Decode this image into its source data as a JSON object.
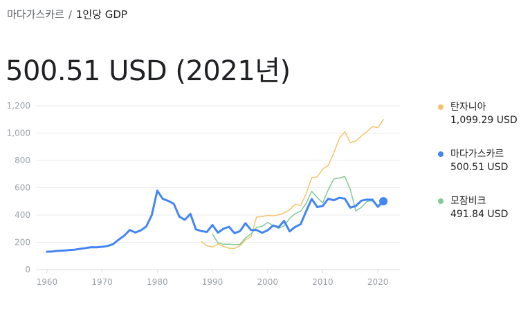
{
  "breadcrumb": {
    "parent": "마다가스카르",
    "separator": "/",
    "current": "1인당 GDP"
  },
  "headline": "500.51 USD (2021년)",
  "legend": [
    {
      "name": "탄자니아",
      "value": "1,099.29 USD",
      "color": "#f6c26b"
    },
    {
      "name": "마다가스카르",
      "value": "500.51 USD",
      "color": "#4285f4"
    },
    {
      "name": "모잠비크",
      "value": "491.84 USD",
      "color": "#81c995"
    }
  ],
  "chart_data": {
    "type": "line",
    "title": "1인당 GDP",
    "xlim": [
      1958,
      2024
    ],
    "ylim": [
      0,
      1200
    ],
    "grid": true,
    "legend_position": "right",
    "x_ticks": [
      1960,
      1970,
      1980,
      1990,
      2000,
      2010,
      2020
    ],
    "y_ticks": [
      0,
      200,
      400,
      600,
      800,
      1000,
      1200
    ],
    "y_tick_labels": [
      "0",
      "200",
      "400",
      "600",
      "800",
      "1,000",
      "1,200"
    ],
    "series": [
      {
        "name": "마다가스카르",
        "color": "#4285f4",
        "x": [
          1960,
          1961,
          1962,
          1963,
          1964,
          1965,
          1966,
          1967,
          1968,
          1969,
          1970,
          1971,
          1972,
          1973,
          1974,
          1975,
          1976,
          1977,
          1978,
          1979,
          1980,
          1981,
          1982,
          1983,
          1984,
          1985,
          1986,
          1987,
          1988,
          1989,
          1990,
          1991,
          1992,
          1993,
          1994,
          1995,
          1996,
          1997,
          1998,
          1999,
          2000,
          2001,
          2002,
          2003,
          2004,
          2005,
          2006,
          2007,
          2008,
          2009,
          2010,
          2011,
          2012,
          2013,
          2014,
          2015,
          2016,
          2017,
          2018,
          2019,
          2020,
          2021
        ],
        "values": [
          131,
          133,
          137,
          139,
          143,
          146,
          152,
          158,
          164,
          163,
          167,
          173,
          187,
          220,
          248,
          290,
          272,
          287,
          316,
          400,
          578,
          518,
          503,
          482,
          388,
          365,
          408,
          295,
          282,
          276,
          327,
          271,
          299,
          314,
          267,
          282,
          340,
          290,
          290,
          270,
          287,
          323,
          311,
          357,
          280,
          313,
          332,
          428,
          518,
          458,
          466,
          519,
          508,
          526,
          520,
          454,
          466,
          505,
          513,
          513,
          460,
          500.51
        ]
      },
      {
        "name": "탄자니아",
        "color": "#f6c26b",
        "x": [
          1988,
          1989,
          1990,
          1991,
          1992,
          1993,
          1994,
          1995,
          1996,
          1997,
          1998,
          1999,
          2000,
          2001,
          2002,
          2003,
          2004,
          2005,
          2006,
          2007,
          2008,
          2009,
          2010,
          2011,
          2012,
          2013,
          2014,
          2015,
          2016,
          2017,
          2018,
          2019,
          2020,
          2021
        ],
        "values": [
          205,
          174,
          165,
          188,
          170,
          157,
          155,
          176,
          218,
          242,
          385,
          389,
          397,
          394,
          401,
          416,
          437,
          479,
          470,
          554,
          672,
          679,
          735,
          764,
          854,
          960,
          1010,
          930,
          942,
          978,
          1010,
          1047,
          1040,
          1099.29
        ]
      },
      {
        "name": "모잠비크",
        "color": "#81c995",
        "x": [
          1990,
          1991,
          1992,
          1993,
          1994,
          1995,
          1996,
          1997,
          1998,
          1999,
          2000,
          2001,
          2002,
          2003,
          2004,
          2005,
          2006,
          2007,
          2008,
          2009,
          2010,
          2011,
          2012,
          2013,
          2014,
          2015,
          2016,
          2017,
          2018,
          2019,
          2020,
          2021
        ],
        "values": [
          260,
          196,
          186,
          186,
          183,
          185,
          232,
          262,
          309,
          317,
          345,
          323,
          302,
          320,
          375,
          410,
          428,
          485,
          574,
          528,
          488,
          585,
          664,
          671,
          682,
          587,
          430,
          455,
          500,
          504,
          455,
          491.84
        ]
      }
    ]
  }
}
